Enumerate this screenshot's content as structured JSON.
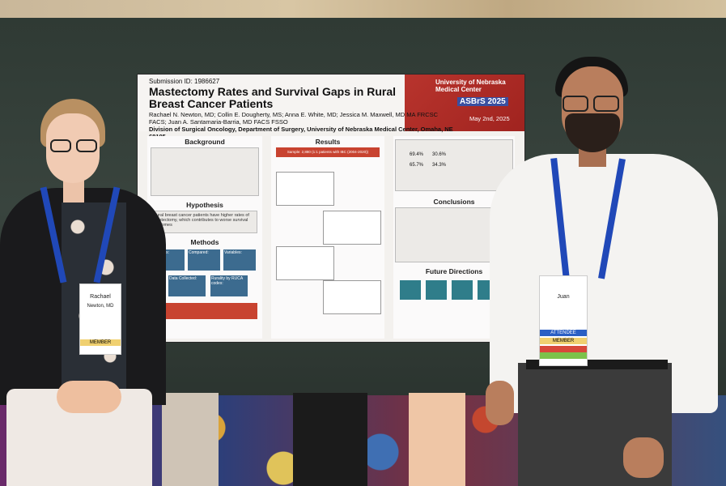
{
  "poster": {
    "submission_id": "Submission ID: 1986627",
    "title": "Mastectomy Rates and Survival Gaps in Rural Breast Cancer Patients",
    "authors": "Rachael N. Newton, MD; Collin E. Dougherty, MS; Anna E. White, MD; Jessica M. Maxwell, MD MA FRCSC FACS; Juan A. Santamaria-Barria, MD FACS FSSO",
    "affiliation": "Division of Surgical Oncology, Department of Surgery, University of Nebraska Medical Center, Omaha, NE 68105",
    "institution": "University of Nebraska Medical Center",
    "conference": "ASBrS 2025",
    "date": "May 2nd, 2025",
    "sections": {
      "background": "Background",
      "hypothesis": "Hypothesis",
      "methods": "Methods",
      "results": "Results",
      "conclusions": "Conclusions",
      "future": "Future Directions"
    },
    "hypothesis_text": "Rural breast cancer patients have higher rates of mastectomy, which contributes to worse survival outcomes",
    "results_banner": "Sample: 2,880 (1:1 patients with IBC (2004-2020))",
    "results_stats": [
      "69.4%",
      "30.6%",
      "65.7%",
      "34.3%"
    ],
    "methods_labels": [
      "Analysis:",
      "Compared:",
      "Variables:",
      "Data Collected:",
      "Rurality by RUCA codes:"
    ]
  },
  "badges": {
    "woman_name": "Rachael",
    "woman_detail": "Newton, MD",
    "man_name": "Juan",
    "ribbon": "MEMBER",
    "role": "ATTENDEE"
  },
  "colors": {
    "poster_red": "#b8342d",
    "panel": "#39443e",
    "lanyard": "#2048b8"
  }
}
